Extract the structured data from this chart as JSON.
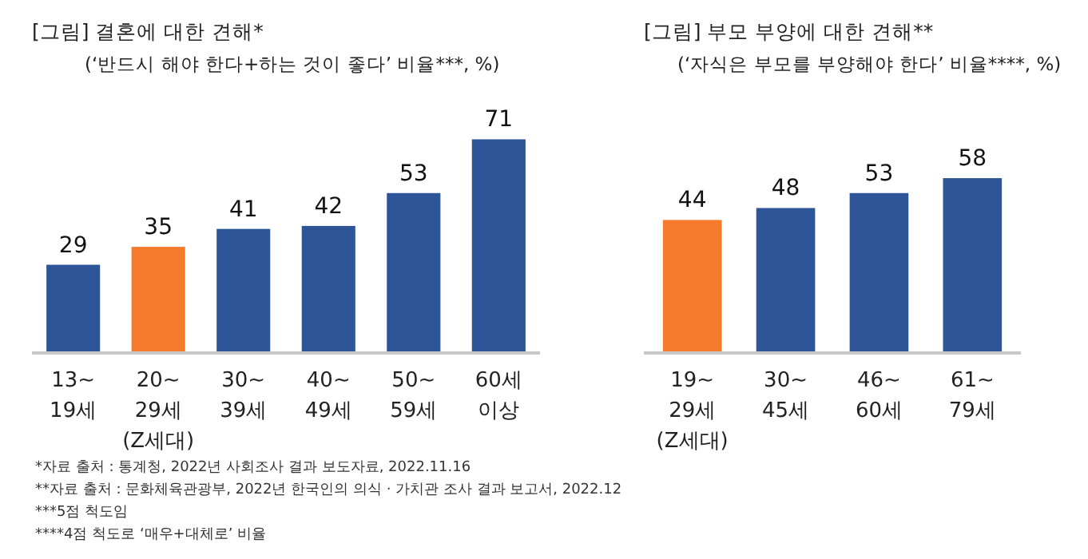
{
  "chart_data": [
    {
      "type": "bar",
      "title": "[그림] 결혼에 대한 견해*",
      "subtitle": "(‘반드시 해야 한다+하는 것이 좋다’ 비율***, %)",
      "categories": [
        "13~\n19세",
        "20~\n29세\n(Z세대)",
        "30~\n39세",
        "40~\n49세",
        "50~\n59세",
        "60세\n이상"
      ],
      "values": [
        29,
        35,
        41,
        42,
        53,
        71
      ],
      "colors": [
        "#2e5597",
        "#f57a2c",
        "#2e5597",
        "#2e5597",
        "#2e5597",
        "#2e5597"
      ],
      "data_labels": true,
      "annotations": [
        "*자료 출처 : 통계청, 2022년 사회조사 결과 보도자료, 2022.11.16",
        "**자료 출처 : 문화체육관광부, 2022년 한국인의 의식 · 가치관 조사 결과 보고서, 2022.12",
        "***5점 척도임",
        "****4점 척도로 ‘매우+대체로’ 비율"
      ]
    },
    {
      "type": "bar",
      "title": "[그림] 부모 부양에 대한 견해**",
      "subtitle": "(‘자식은 부모를 부양해야 한다’ 비율****, %)",
      "categories": [
        "19~\n29세\n(Z세대)",
        "30~\n45세",
        "46~\n60세",
        "61~\n79세"
      ],
      "values": [
        44,
        48,
        53,
        58
      ],
      "colors": [
        "#f57a2c",
        "#2e5597",
        "#2e5597",
        "#2e5597"
      ],
      "data_labels": true
    }
  ]
}
